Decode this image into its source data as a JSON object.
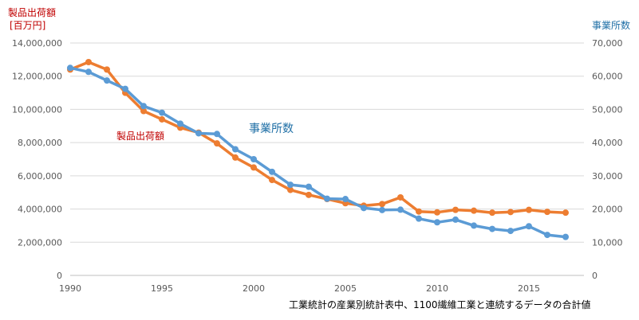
{
  "chart_data": {
    "type": "line",
    "x": [
      1990,
      1991,
      1992,
      1993,
      1994,
      1995,
      1996,
      1997,
      1998,
      1999,
      2000,
      2001,
      2002,
      2003,
      2004,
      2005,
      2006,
      2007,
      2008,
      2009,
      2010,
      2011,
      2012,
      2013,
      2014,
      2015,
      2016,
      2017
    ],
    "x_ticks": [
      "1990",
      "1995",
      "2000",
      "2005",
      "2010",
      "2015"
    ],
    "xlim": [
      1990,
      2018
    ],
    "left_axis": {
      "title_line1": "製品出荷額",
      "title_line2": "[百万円]",
      "ylim": [
        0,
        14000000
      ],
      "ticks": [
        "0",
        "2,000,000",
        "4,000,000",
        "6,000,000",
        "8,000,000",
        "10,000,000",
        "12,000,000",
        "14,000,000"
      ]
    },
    "right_axis": {
      "title": "事業所数",
      "ylim": [
        0,
        70000
      ],
      "ticks": [
        "0",
        "10,000",
        "20,000",
        "30,000",
        "40,000",
        "50,000",
        "60,000",
        "70,000"
      ]
    },
    "series": [
      {
        "name": "製品出荷額",
        "axis": "left",
        "color": "#ed7d31",
        "values": [
          12400000,
          12850000,
          12400000,
          11000000,
          9900000,
          9400000,
          8900000,
          8600000,
          7950000,
          7100000,
          6500000,
          5750000,
          5150000,
          4850000,
          4600000,
          4350000,
          4200000,
          4300000,
          4700000,
          3850000,
          3800000,
          3950000,
          3900000,
          3780000,
          3820000,
          3950000,
          3830000,
          3780000
        ]
      },
      {
        "name": "事業所数",
        "axis": "right",
        "color": "#5b9bd5",
        "values": [
          62500,
          61300,
          58700,
          56200,
          51000,
          49000,
          45700,
          42800,
          42600,
          38000,
          35000,
          31200,
          27300,
          26700,
          23100,
          23000,
          20300,
          19700,
          19800,
          17100,
          16000,
          16800,
          15000,
          14000,
          13400,
          14800,
          12200,
          11600
        ]
      }
    ],
    "annotations": [
      {
        "text": "製品出荷額",
        "color": "#c00000"
      },
      {
        "text": "事業所数",
        "color": "#1f6fa6"
      }
    ],
    "source_note": "工業統計の産業別統計表中、1100繊維工業と連続するデータの合計値",
    "grid": true
  }
}
